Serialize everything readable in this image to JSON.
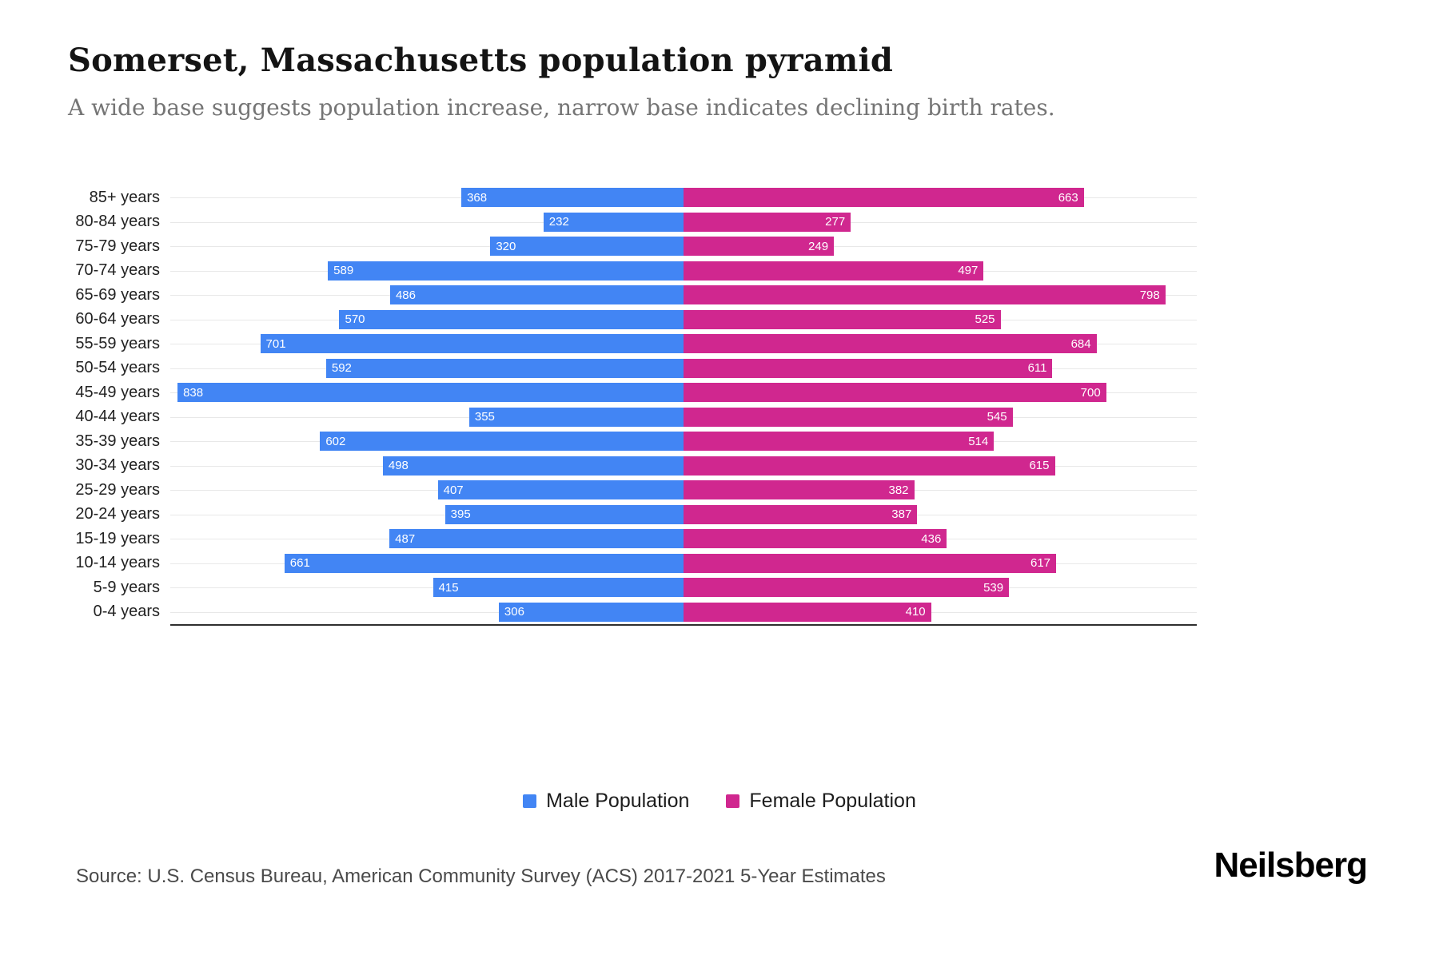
{
  "header": {
    "title": "Somerset, Massachusetts population pyramid",
    "subtitle": "A wide base suggests population increase, narrow base indicates declining birth rates."
  },
  "chart_data": {
    "type": "bar",
    "variant": "population-pyramid",
    "orientation": "horizontal",
    "categories": [
      "85+ years",
      "80-84 years",
      "75-79 years",
      "70-74 years",
      "65-69 years",
      "60-64 years",
      "55-59 years",
      "50-54 years",
      "45-49 years",
      "40-44 years",
      "35-39 years",
      "30-34 years",
      "25-29 years",
      "20-24 years",
      "15-19 years",
      "10-14 years",
      "5-9 years",
      "0-4 years"
    ],
    "series": [
      {
        "name": "Male Population",
        "side": "left",
        "color": "#4285f4",
        "values": [
          368,
          232,
          320,
          589,
          486,
          570,
          701,
          592,
          838,
          355,
          602,
          498,
          407,
          395,
          487,
          661,
          415,
          306
        ]
      },
      {
        "name": "Female Population",
        "side": "right",
        "color": "#d0278f",
        "values": [
          663,
          277,
          249,
          497,
          798,
          525,
          684,
          611,
          700,
          545,
          514,
          615,
          382,
          387,
          436,
          617,
          539,
          410
        ]
      }
    ],
    "xlim": [
      0,
      850
    ],
    "grid": true,
    "value_labels": "inside-ends",
    "legend_position": "bottom",
    "title": "Somerset, Massachusetts population pyramid"
  },
  "legend": {
    "male_label": "Male Population",
    "female_label": "Female Population"
  },
  "footer": {
    "source": "Source: U.S. Census Bureau, American Community Survey (ACS) 2017-2021 5-Year Estimates",
    "brand": "Neilsberg"
  }
}
